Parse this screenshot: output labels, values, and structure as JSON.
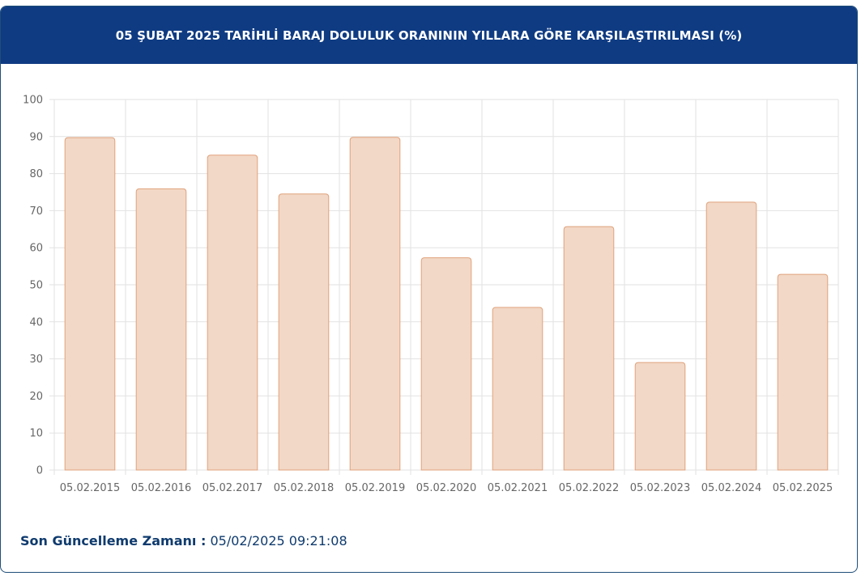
{
  "header": {
    "title": "05 ŞUBAT 2025 TARİHLİ BARAJ DOLULUK ORANININ YILLARA GÖRE KARŞILAŞTIRILMASI (%)"
  },
  "chart_data": {
    "type": "bar",
    "title": "05 ŞUBAT 2025 TARİHLİ BARAJ DOLULUK ORANININ YILLARA GÖRE KARŞILAŞTIRILMASI (%)",
    "xlabel": "",
    "ylabel": "",
    "categories": [
      "05.02.2015",
      "05.02.2016",
      "05.02.2017",
      "05.02.2018",
      "05.02.2019",
      "05.02.2020",
      "05.02.2021",
      "05.02.2022",
      "05.02.2023",
      "05.02.2024",
      "05.02.2025"
    ],
    "values": [
      89.7,
      75.9,
      85.0,
      74.5,
      89.8,
      57.3,
      43.9,
      65.7,
      29.0,
      72.3,
      52.8
    ],
    "ylim": [
      0,
      100
    ],
    "yticks": [
      "0",
      "10",
      "20",
      "30",
      "40",
      "50",
      "60",
      "70",
      "80",
      "90",
      "100"
    ],
    "grid": true,
    "legend": "none",
    "colors": {
      "bar_fill": "#f2d8c6",
      "bar_stroke": "#e0a27c",
      "grid": "#e2e2e2",
      "axis_text": "#666666"
    }
  },
  "footer": {
    "label": "Son Güncelleme Zamanı :",
    "value": "05/02/2025 09:21:08"
  },
  "colors": {
    "header_bg": "#0f3b82",
    "footer_text": "#0f3b6e"
  }
}
